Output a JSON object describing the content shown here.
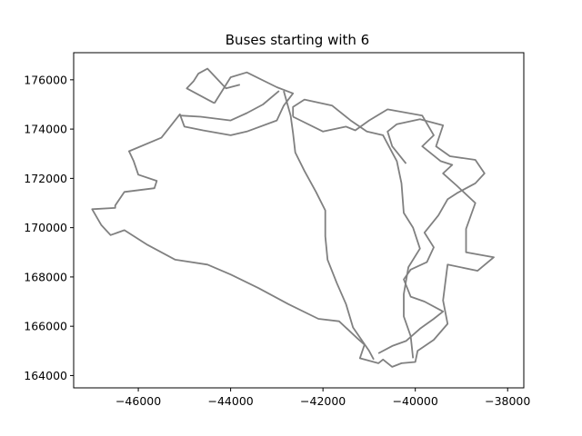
{
  "chart_data": {
    "type": "line",
    "title": "Buses starting with 6",
    "xlabel": "",
    "ylabel": "",
    "xlim": [
      -47400,
      -37650
    ],
    "ylim": [
      163500,
      177100
    ],
    "xticks": [
      -46000,
      -44000,
      -42000,
      -40000,
      -38000
    ],
    "xtick_labels": [
      "−46000",
      "−44000",
      "−42000",
      "−40000",
      "−38000"
    ],
    "yticks": [
      164000,
      166000,
      168000,
      170000,
      172000,
      174000,
      176000
    ],
    "ytick_labels": [
      "164000",
      "166000",
      "168000",
      "170000",
      "172000",
      "174000",
      "176000"
    ],
    "grid": false,
    "line_color": "#808080",
    "series": [
      {
        "points": [
          [
            -42850,
            175550
          ],
          [
            -42700,
            174550
          ],
          [
            -42650,
            173850
          ],
          [
            -42600,
            173050
          ],
          [
            -42400,
            172300
          ],
          [
            -42150,
            171450
          ],
          [
            -41950,
            170700
          ],
          [
            -41950,
            169650
          ],
          [
            -41900,
            168700
          ],
          [
            -41700,
            167750
          ],
          [
            -41500,
            166900
          ],
          [
            -41350,
            165950
          ],
          [
            -41000,
            165000
          ],
          [
            -40900,
            164650
          ]
        ]
      },
      {
        "points": [
          [
            -42650,
            174500
          ],
          [
            -42650,
            174900
          ],
          [
            -42400,
            175200
          ],
          [
            -41800,
            174950
          ],
          [
            -41400,
            174350
          ],
          [
            -41050,
            173900
          ],
          [
            -40700,
            173750
          ],
          [
            -40500,
            173050
          ],
          [
            -40400,
            172700
          ],
          [
            -40300,
            171800
          ],
          [
            -40250,
            170600
          ],
          [
            -40050,
            170000
          ],
          [
            -39900,
            169150
          ],
          [
            -40150,
            168400
          ],
          [
            -40250,
            167300
          ],
          [
            -40250,
            166400
          ],
          [
            -40100,
            165600
          ],
          [
            -40050,
            164700
          ]
        ]
      },
      {
        "points": [
          [
            -44350,
            175050
          ],
          [
            -44000,
            176100
          ],
          [
            -43650,
            176300
          ],
          [
            -43000,
            175700
          ],
          [
            -42650,
            175450
          ],
          [
            -42850,
            174950
          ],
          [
            -43000,
            174350
          ],
          [
            -43650,
            173900
          ],
          [
            -44000,
            173750
          ],
          [
            -44600,
            173950
          ],
          [
            -45000,
            174100
          ],
          [
            -45100,
            174600
          ],
          [
            -45500,
            173650
          ],
          [
            -46200,
            173100
          ],
          [
            -46100,
            172700
          ],
          [
            -46000,
            172150
          ],
          [
            -45600,
            171900
          ],
          [
            -45650,
            171600
          ],
          [
            -46300,
            171450
          ],
          [
            -46500,
            170900
          ],
          [
            -46500,
            170800
          ],
          [
            -47000,
            170750
          ],
          [
            -46800,
            170100
          ],
          [
            -46600,
            169700
          ],
          [
            -46300,
            169900
          ],
          [
            -45800,
            169300
          ],
          [
            -45200,
            168700
          ],
          [
            -44500,
            168500
          ],
          [
            -44000,
            168100
          ],
          [
            -43400,
            167550
          ],
          [
            -42750,
            166900
          ],
          [
            -42100,
            166300
          ],
          [
            -41650,
            166200
          ],
          [
            -41250,
            165500
          ],
          [
            -41100,
            165250
          ],
          [
            -41200,
            164700
          ],
          [
            -40800,
            164500
          ],
          [
            -40700,
            164650
          ],
          [
            -40500,
            164350
          ],
          [
            -40300,
            164500
          ],
          [
            -40000,
            164550
          ],
          [
            -39950,
            165000
          ],
          [
            -39600,
            165450
          ],
          [
            -39300,
            166100
          ],
          [
            -39400,
            167050
          ],
          [
            -39300,
            168500
          ],
          [
            -38650,
            168250
          ],
          [
            -38300,
            168800
          ],
          [
            -38900,
            169000
          ],
          [
            -38900,
            169950
          ],
          [
            -38700,
            171000
          ],
          [
            -39100,
            171700
          ],
          [
            -39400,
            172200
          ],
          [
            -39200,
            172550
          ],
          [
            -39450,
            172700
          ],
          [
            -39850,
            173300
          ],
          [
            -39600,
            173750
          ],
          [
            -39850,
            174550
          ],
          [
            -40600,
            174800
          ],
          [
            -41000,
            174350
          ],
          [
            -41300,
            173950
          ],
          [
            -41500,
            174100
          ],
          [
            -42000,
            173900
          ],
          [
            -42650,
            174500
          ]
        ]
      },
      {
        "points": [
          [
            -45100,
            174550
          ],
          [
            -44650,
            174500
          ],
          [
            -44000,
            174350
          ],
          [
            -43650,
            174650
          ],
          [
            -43300,
            175000
          ],
          [
            -42950,
            175550
          ]
        ]
      },
      {
        "points": [
          [
            -43800,
            175800
          ],
          [
            -44100,
            175650
          ],
          [
            -44300,
            176050
          ],
          [
            -44500,
            176450
          ],
          [
            -44700,
            176250
          ],
          [
            -44800,
            175950
          ],
          [
            -44950,
            175650
          ],
          [
            -44500,
            175200
          ],
          [
            -44350,
            175050
          ]
        ]
      },
      {
        "points": [
          [
            -40800,
            164900
          ],
          [
            -40500,
            165200
          ],
          [
            -40200,
            165400
          ],
          [
            -39900,
            165900
          ],
          [
            -39600,
            166300
          ],
          [
            -39400,
            166600
          ],
          [
            -39800,
            167000
          ],
          [
            -40100,
            167200
          ],
          [
            -40250,
            167900
          ],
          [
            -40100,
            168300
          ],
          [
            -39750,
            168600
          ],
          [
            -39600,
            169200
          ],
          [
            -39800,
            169800
          ],
          [
            -39500,
            170500
          ],
          [
            -39300,
            171150
          ],
          [
            -39100,
            171400
          ],
          [
            -38700,
            171800
          ],
          [
            -38500,
            172200
          ],
          [
            -38700,
            172750
          ],
          [
            -39250,
            172900
          ],
          [
            -39550,
            173300
          ],
          [
            -39400,
            174150
          ],
          [
            -39900,
            174400
          ],
          [
            -40400,
            174200
          ],
          [
            -40600,
            173900
          ],
          [
            -40500,
            173300
          ],
          [
            -40200,
            172600
          ]
        ]
      }
    ]
  }
}
